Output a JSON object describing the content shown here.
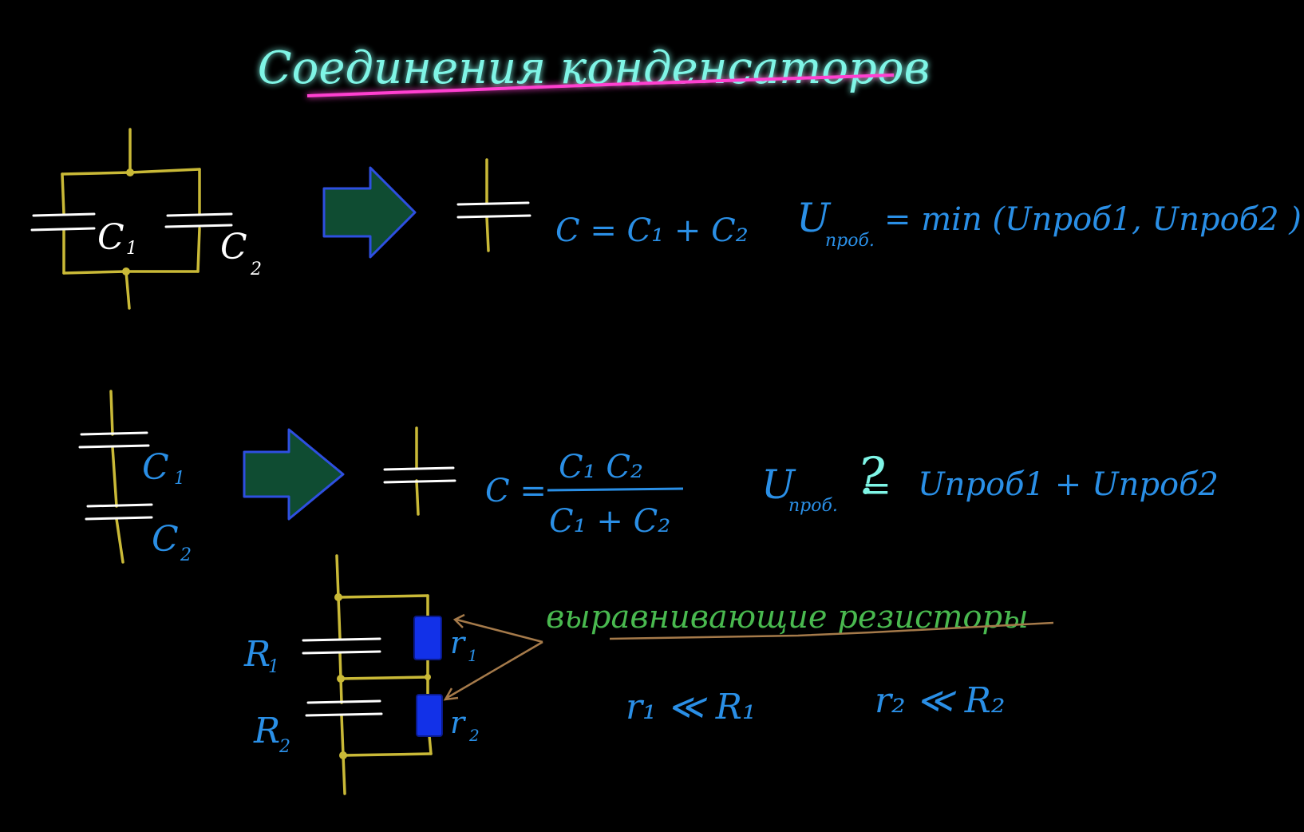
{
  "title": "Соединения конденсаторов",
  "parallel": {
    "c1_label": "C",
    "c1_sub": "1",
    "c2_label": "C",
    "c2_sub": "2",
    "formula": "C = C₁ + C₂",
    "voltage": "U",
    "voltage_sub": "проб.",
    "voltage_rhs": "= min (Uпроб1, Uпроб2 )"
  },
  "series": {
    "c1_label": "C",
    "c1_sub": "1",
    "c2_label": "C",
    "c2_sub": "2",
    "formula_lhs": "C =",
    "formula_num": "C₁ C₂",
    "formula_den": "C₁ + C₂",
    "voltage": "U",
    "voltage_sub": "проб.",
    "relation": "?",
    "relation_eq": "=",
    "voltage_rhs": "Uпроб1 + Uпроб2"
  },
  "balancing": {
    "r1_label": "R",
    "r1_sub": "1",
    "r2_label": "R",
    "r2_sub": "2",
    "small_r1": "r",
    "small_r1_sub": "1",
    "small_r2": "r",
    "small_r2_sub": "2",
    "caption": "выравнивающие резисторы",
    "cond1": "r₁ ≪ R₁",
    "cond2": "r₂ ≪ R₂"
  },
  "colors": {
    "title_text": "#7ff5e6",
    "title_underline": "#ff3fd0",
    "wire": "#c9b937",
    "formula": "#2a8fe6",
    "caption": "#49b94f",
    "caption_underline": "#a57a4a",
    "arrow_fill": "#0f4c32",
    "arrow_stroke": "#2e4fe0",
    "resistor": "#1231e8"
  }
}
